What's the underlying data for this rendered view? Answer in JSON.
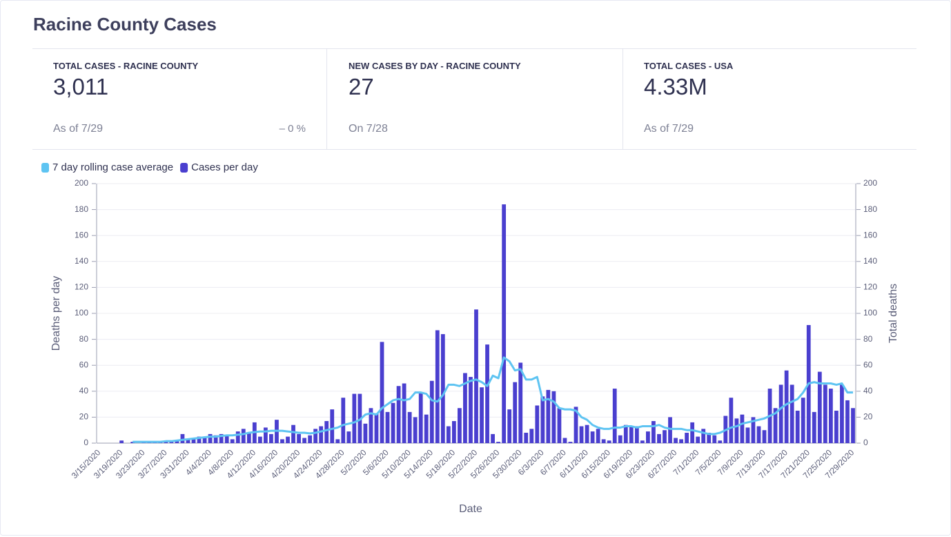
{
  "header": {
    "title": "Racine County Cases"
  },
  "kpis": [
    {
      "label": "TOTAL CASES - RACINE COUNTY",
      "value": "3,011",
      "note": "As of 7/29",
      "change": "–  0 %"
    },
    {
      "label": "NEW CASES BY DAY - RACINE COUNTY",
      "value": "27",
      "note": "On 7/28"
    },
    {
      "label": "TOTAL CASES - USA",
      "value": "4.33M",
      "note": "As of 7/29"
    }
  ],
  "chart_data": {
    "type": "bar",
    "xlabel": "Date",
    "ylabel": "Deaths per day",
    "y2label": "Total deaths",
    "ylim": [
      0,
      200
    ],
    "yticks": [
      0,
      20,
      40,
      60,
      80,
      100,
      120,
      140,
      160,
      180,
      200
    ],
    "y2lim": [
      0,
      200
    ],
    "y2ticks": [
      0,
      20,
      40,
      60,
      80,
      100,
      120,
      140,
      160,
      180,
      200
    ],
    "grid": true,
    "legend": "top-left",
    "categories": [
      "3/15/2020",
      null,
      null,
      null,
      "3/19/2020",
      null,
      null,
      null,
      "3/23/2020",
      null,
      null,
      null,
      "3/27/2020",
      null,
      null,
      null,
      "3/31/2020",
      null,
      null,
      null,
      "4/4/2020",
      null,
      null,
      null,
      "4/8/2020",
      null,
      null,
      null,
      "4/12/2020",
      null,
      null,
      null,
      "4/16/2020",
      null,
      null,
      null,
      "4/20/2020",
      null,
      null,
      null,
      "4/24/2020",
      null,
      null,
      null,
      "4/28/2020",
      null,
      null,
      null,
      "5/2/2020",
      null,
      null,
      null,
      "5/6/2020",
      null,
      null,
      null,
      "5/10/2020",
      null,
      null,
      null,
      "5/14/2020",
      null,
      null,
      null,
      "5/18/2020",
      null,
      null,
      null,
      "5/22/2020",
      null,
      null,
      null,
      "5/26/2020",
      null,
      null,
      null,
      "5/30/2020",
      null,
      null,
      null,
      "6/3/2020",
      null,
      null,
      null,
      "6/7/2020",
      null,
      null,
      null,
      "6/11/2020",
      null,
      null,
      null,
      "6/15/2020",
      null,
      null,
      null,
      "6/19/2020",
      null,
      null,
      null,
      "6/23/2020",
      null,
      null,
      null,
      "6/27/2020",
      null,
      null,
      null,
      "7/1/2020",
      null,
      null,
      null,
      "7/5/2020",
      null,
      null,
      null,
      "7/9/2020",
      null,
      null,
      null,
      "7/13/2020",
      null,
      null,
      null,
      "7/17/2020",
      null,
      null,
      null,
      "7/21/2020",
      null,
      null,
      null,
      "7/25/2020",
      null,
      null,
      null,
      "7/29/2020"
    ],
    "series": [
      {
        "name": "7 day rolling case average",
        "type": "line",
        "color": "#5ec4f2",
        "values": [
          null,
          null,
          null,
          null,
          null,
          null,
          1,
          1,
          1,
          1,
          1,
          1,
          1.5,
          1.5,
          2,
          2.5,
          3,
          3.5,
          4,
          4.5,
          5,
          5,
          5.5,
          6,
          6,
          6.5,
          7,
          8,
          8.5,
          9,
          9,
          9.5,
          9.5,
          9.5,
          9,
          8.5,
          8,
          8,
          7.5,
          8,
          9,
          10,
          11,
          12,
          14,
          15,
          16,
          18,
          22,
          23,
          22,
          27,
          30,
          33,
          34,
          33,
          34,
          39,
          39,
          38,
          33,
          32,
          37,
          45,
          45,
          44,
          46,
          48,
          49,
          47,
          44,
          52,
          50,
          66,
          63,
          56,
          57,
          49,
          49,
          51,
          33,
          34,
          32,
          27,
          26,
          26,
          25,
          20,
          18,
          14,
          12,
          11,
          11,
          12,
          12,
          13,
          13,
          12,
          13,
          13,
          13,
          14,
          12,
          11,
          11,
          11,
          10,
          10,
          9,
          8,
          7,
          7,
          8,
          10,
          12,
          13,
          15,
          16,
          17,
          18,
          19,
          21,
          23,
          27,
          30,
          32,
          34,
          39,
          46,
          47,
          46,
          46,
          46,
          45,
          46,
          39,
          39
        ]
      },
      {
        "name": "Cases per day",
        "type": "bar",
        "color": "#4a3fcf",
        "values": [
          0,
          0,
          0,
          0,
          2,
          0,
          1,
          0,
          1,
          1,
          1,
          1,
          2,
          1,
          2,
          7,
          3,
          4,
          5,
          4,
          7,
          6,
          7,
          6,
          3,
          9,
          11,
          8,
          16,
          5,
          12,
          7,
          18,
          3,
          5,
          14,
          7,
          4,
          6,
          11,
          13,
          17,
          26,
          3,
          35,
          9,
          38,
          38,
          15,
          27,
          23,
          78,
          24,
          31,
          44,
          46,
          24,
          20,
          39,
          22,
          48,
          87,
          84,
          13,
          17,
          27,
          54,
          51,
          103,
          43,
          76,
          7,
          1,
          184,
          26,
          47,
          62,
          8,
          11,
          29,
          36,
          41,
          40,
          27,
          4,
          1,
          28,
          13,
          14,
          9,
          11,
          3,
          2,
          42,
          6,
          14,
          13,
          13,
          2,
          9,
          17,
          7,
          10,
          20,
          4,
          3,
          8,
          16,
          5,
          11,
          8,
          6,
          2,
          21,
          35,
          19,
          22,
          12,
          20,
          13,
          10,
          42,
          27,
          45,
          56,
          45,
          25,
          35,
          91,
          24,
          55,
          45,
          42,
          25,
          45,
          33,
          27
        ]
      }
    ]
  }
}
